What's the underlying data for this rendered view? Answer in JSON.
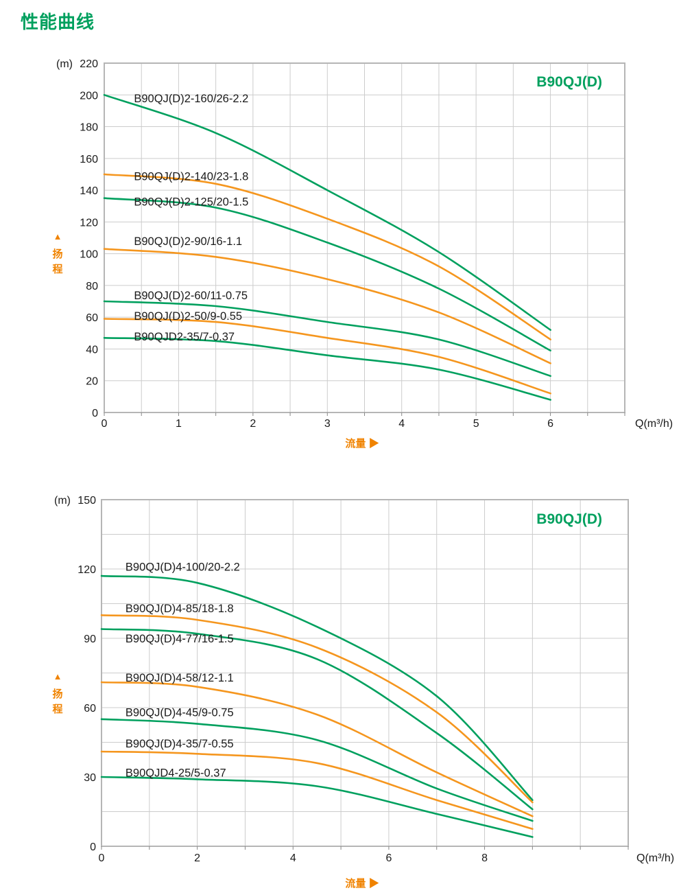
{
  "page": {
    "title": "性能曲线"
  },
  "colors": {
    "green": "#00A05E",
    "orange": "#F5961E",
    "caption_orange": "#F08300",
    "grid": "#cccccc",
    "border": "#b5b5b5",
    "tick": "#888888",
    "text": "#1a1a1a"
  },
  "chart_data": [
    {
      "type": "line",
      "title": "B90QJ(D)",
      "y_unit": "(m)",
      "ylabel": "扬程",
      "ylabel_arrow": "▲",
      "xlabel": "流量",
      "xlabel_arrow": "▶",
      "x_unit": "Q(m³/h)",
      "xlim": [
        0,
        7
      ],
      "ylim": [
        0,
        220
      ],
      "x_tick_step": 1,
      "x_grid_step": 0.5,
      "y_tick_step": 20,
      "y_grid_step": 20,
      "grid": true,
      "series": [
        {
          "name": "B90QJ(D)2-160/26-2.2",
          "color": "green",
          "points": [
            [
              0,
              200
            ],
            [
              1.5,
              176
            ],
            [
              3,
              140
            ],
            [
              4.5,
              101
            ],
            [
              6,
              52
            ]
          ],
          "label_pos": [
            0.4,
            198
          ]
        },
        {
          "name": "B90QJ(D)2-140/23-1.8",
          "color": "orange",
          "points": [
            [
              0,
              150
            ],
            [
              1.5,
              144
            ],
            [
              3,
              122
            ],
            [
              4.5,
              92
            ],
            [
              6,
              46
            ]
          ],
          "label_pos": [
            0.4,
            149
          ]
        },
        {
          "name": "B90QJ(D)2-125/20-1.5",
          "color": "green",
          "points": [
            [
              0,
              135
            ],
            [
              1.5,
              129
            ],
            [
              3,
              107
            ],
            [
              4.5,
              78
            ],
            [
              6,
              39
            ]
          ],
          "label_pos": [
            0.4,
            133
          ]
        },
        {
          "name": "B90QJ(D)2-90/16-1.1",
          "color": "orange",
          "points": [
            [
              0,
              103
            ],
            [
              1.5,
              98
            ],
            [
              3,
              84
            ],
            [
              4.5,
              63
            ],
            [
              6,
              31
            ]
          ],
          "label_pos": [
            0.4,
            108
          ]
        },
        {
          "name": "B90QJ(D)2-60/11-0.75",
          "color": "green",
          "points": [
            [
              0,
              70
            ],
            [
              1.5,
              67
            ],
            [
              3,
              57
            ],
            [
              4.5,
              46
            ],
            [
              6,
              23
            ]
          ],
          "label_pos": [
            0.4,
            74
          ]
        },
        {
          "name": "B90QJ(D)2-50/9-0.55",
          "color": "orange",
          "points": [
            [
              0,
              59
            ],
            [
              1.5,
              57
            ],
            [
              3,
              47
            ],
            [
              4.5,
              35
            ],
            [
              6,
              12
            ]
          ],
          "label_pos": [
            0.4,
            61
          ]
        },
        {
          "name": "B90QJD2-35/7-0.37",
          "color": "green",
          "points": [
            [
              0,
              47
            ],
            [
              1.5,
              45
            ],
            [
              3,
              36
            ],
            [
              4.5,
              27
            ],
            [
              6,
              8
            ]
          ],
          "label_pos": [
            0.4,
            48
          ]
        }
      ]
    },
    {
      "type": "line",
      "title": "B90QJ(D)",
      "y_unit": "(m)",
      "ylabel": "扬程",
      "ylabel_arrow": "▲",
      "xlabel": "流量",
      "xlabel_arrow": "▶",
      "x_unit": "Q(m³/h)",
      "xlim": [
        0,
        11
      ],
      "ylim": [
        0,
        150
      ],
      "x_tick_step": 2,
      "x_grid_step": 1,
      "y_tick_step": 30,
      "y_grid_step": 15,
      "grid": true,
      "series": [
        {
          "name": "B90QJ(D)4-100/20-2.2",
          "color": "green",
          "points": [
            [
              0,
              117
            ],
            [
              2,
              114
            ],
            [
              4.5,
              95
            ],
            [
              7,
              65
            ],
            [
              9,
              20
            ]
          ],
          "label_pos": [
            0.5,
            121
          ]
        },
        {
          "name": "B90QJ(D)4-85/18-1.8",
          "color": "orange",
          "points": [
            [
              0,
              100
            ],
            [
              2,
              98
            ],
            [
              4.5,
              86
            ],
            [
              7,
              58
            ],
            [
              9,
              19
            ]
          ],
          "label_pos": [
            0.5,
            103
          ]
        },
        {
          "name": "B90QJ(D)4-77/16-1.5",
          "color": "green",
          "points": [
            [
              0,
              94
            ],
            [
              2,
              92
            ],
            [
              4.5,
              81
            ],
            [
              7,
              49
            ],
            [
              9,
              16
            ]
          ],
          "label_pos": [
            0.5,
            90
          ]
        },
        {
          "name": "B90QJ(D)4-58/12-1.1",
          "color": "orange",
          "points": [
            [
              0,
              71
            ],
            [
              2,
              69
            ],
            [
              4.5,
              57
            ],
            [
              7,
              32
            ],
            [
              9,
              13
            ]
          ],
          "label_pos": [
            0.5,
            73
          ]
        },
        {
          "name": "B90QJ(D)4-45/9-0.75",
          "color": "green",
          "points": [
            [
              0,
              55
            ],
            [
              2,
              53
            ],
            [
              4.5,
              46
            ],
            [
              7,
              25
            ],
            [
              9,
              11
            ]
          ],
          "label_pos": [
            0.5,
            58
          ]
        },
        {
          "name": "B90QJ(D)4-35/7-0.55",
          "color": "orange",
          "points": [
            [
              0,
              41
            ],
            [
              2,
              40
            ],
            [
              4.5,
              36
            ],
            [
              7,
              20
            ],
            [
              9,
              7.5
            ]
          ],
          "label_pos": [
            0.5,
            44.5
          ]
        },
        {
          "name": "B90QJD4-25/5-0.37",
          "color": "green",
          "points": [
            [
              0,
              30
            ],
            [
              2,
              29
            ],
            [
              4.5,
              26
            ],
            [
              7,
              14
            ],
            [
              9,
              4
            ]
          ],
          "label_pos": [
            0.5,
            32
          ]
        }
      ]
    }
  ]
}
